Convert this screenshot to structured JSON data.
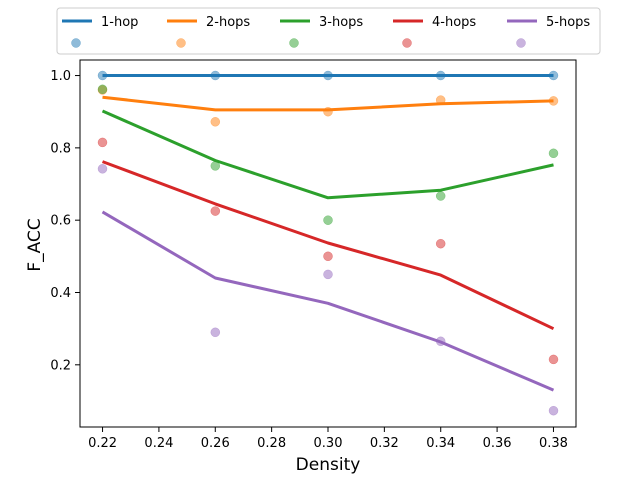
{
  "chart_data": {
    "type": "line",
    "title": "",
    "xlabel": "Density",
    "ylabel": "F_ACC",
    "xlim": [
      0.212,
      0.388
    ],
    "ylim": [
      0.028,
      1.043
    ],
    "xticks": [
      0.22,
      0.24,
      0.26,
      0.28,
      0.3,
      0.32,
      0.34,
      0.36,
      0.38
    ],
    "xtick_labels": [
      "0.22",
      "0.24",
      "0.26",
      "0.28",
      "0.30",
      "0.32",
      "0.34",
      "0.36",
      "0.38"
    ],
    "yticks": [
      0.2,
      0.4,
      0.6,
      0.8,
      1.0
    ],
    "ytick_labels": [
      "0.2",
      "0.4",
      "0.6",
      "0.8",
      "1.0"
    ],
    "grid": false,
    "legend_position": "top",
    "x": [
      0.22,
      0.26,
      0.3,
      0.34,
      0.38
    ],
    "series": [
      {
        "name": "1-hop",
        "color": "#1f77b4",
        "line": [
          1.0,
          1.0,
          1.0,
          1.0,
          1.0
        ],
        "points": [
          1.0,
          1.0,
          1.0,
          1.0,
          1.0
        ]
      },
      {
        "name": "2-hops",
        "color": "#ff7f0e",
        "line": [
          0.94,
          0.905,
          0.905,
          0.922,
          0.93
        ],
        "points": [
          0.96,
          0.872,
          0.9,
          0.932,
          0.93
        ]
      },
      {
        "name": "3-hops",
        "color": "#2ca02c",
        "line": [
          0.902,
          0.765,
          0.662,
          0.683,
          0.753
        ],
        "points": [
          0.962,
          0.75,
          0.6,
          0.667,
          0.785
        ]
      },
      {
        "name": "4-hops",
        "color": "#d62728",
        "line": [
          0.762,
          0.645,
          0.537,
          0.448,
          0.3
        ],
        "points": [
          0.815,
          0.625,
          0.5,
          0.535,
          0.215
        ]
      },
      {
        "name": "5-hops",
        "color": "#9467bd",
        "line": [
          0.623,
          0.44,
          0.37,
          0.263,
          0.13
        ],
        "points": [
          0.742,
          0.29,
          0.45,
          0.265,
          0.073
        ]
      }
    ]
  }
}
